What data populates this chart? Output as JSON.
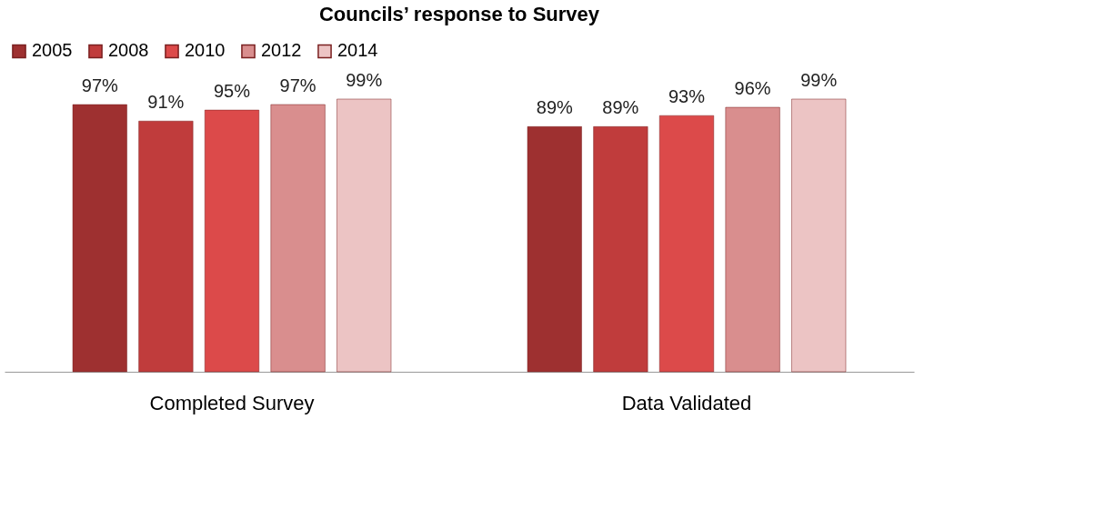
{
  "chart_data": {
    "type": "bar",
    "title": "Councils’ response to Survey",
    "categories": [
      "Completed Survey",
      "Data Validated"
    ],
    "series": [
      {
        "name": "2005",
        "color": "#9e3030",
        "values": [
          97,
          89
        ],
        "value_labels": [
          "97%",
          "89%"
        ]
      },
      {
        "name": "2008",
        "color": "#c03c3c",
        "values": [
          91,
          89
        ],
        "value_labels": [
          "91%",
          "89%"
        ]
      },
      {
        "name": "2010",
        "color": "#dc4a4a",
        "values": [
          95,
          93
        ],
        "value_labels": [
          "95%",
          "93%"
        ]
      },
      {
        "name": "2012",
        "color": "#d98e8e",
        "values": [
          97,
          96
        ],
        "value_labels": [
          "97%",
          "96%"
        ]
      },
      {
        "name": "2014",
        "color": "#ecc4c4",
        "values": [
          99,
          99
        ],
        "value_labels": [
          "99%",
          "99%"
        ]
      }
    ],
    "tick_labels": "x",
    "legend": "top",
    "grid": false
  }
}
